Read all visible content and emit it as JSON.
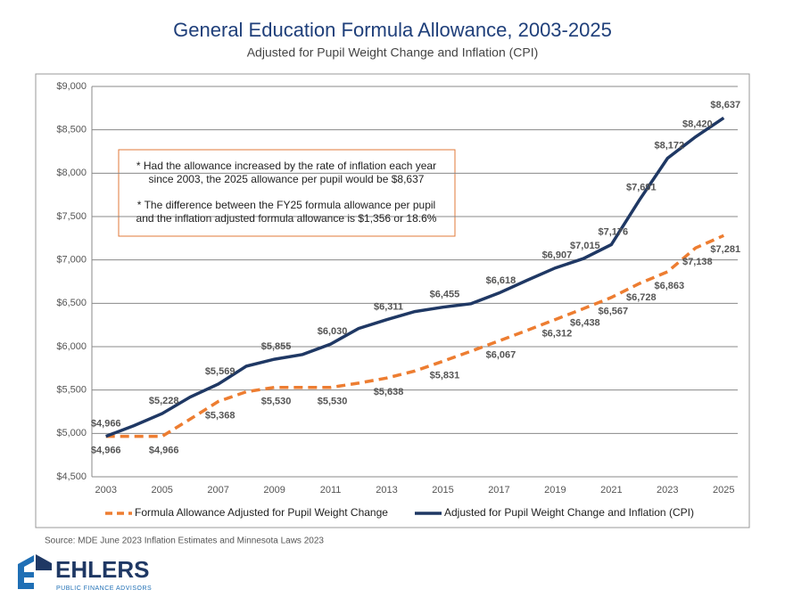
{
  "chart_data": {
    "type": "line",
    "title": "General Education Formula Allowance, 2003-2025",
    "subtitle": "Adjusted for Pupil Weight Change and Inflation (CPI)",
    "categories": [
      "2003",
      null,
      "2005",
      null,
      "2007",
      null,
      "2009",
      null,
      "2011",
      null,
      "2013",
      null,
      "2015",
      null,
      "2017",
      null,
      "2019",
      null,
      "2021",
      null,
      "2023",
      null,
      "2025"
    ],
    "series": [
      {
        "name": "Formula Allowance Adjusted for Pupil Weight Change",
        "color": "#ed7d31",
        "dash": true,
        "values": [
          4966,
          4966,
          4966,
          5165,
          5368,
          5480,
          5530,
          5530,
          5530,
          5580,
          5638,
          5720,
          5831,
          5948,
          6067,
          6188,
          6312,
          6438,
          6567,
          6728,
          6863,
          7138,
          7281
        ],
        "value_labels": [
          "$4,966",
          null,
          "$4,966",
          null,
          "$5,368",
          null,
          "$5,530",
          null,
          "$5,530",
          null,
          "$5,638",
          null,
          "$5,831",
          null,
          "$6,067",
          null,
          "$6,312",
          "$6,438",
          "$6,567",
          "$6,728",
          "$6,863",
          "$7,138",
          "$7,281"
        ]
      },
      {
        "name": "Adjusted for Pupil Weight Change and Inflation (CPI)",
        "color": "#1f3864",
        "dash": false,
        "values": [
          4966,
          5090,
          5228,
          5420,
          5569,
          5775,
          5855,
          5910,
          6030,
          6210,
          6311,
          6405,
          6455,
          6495,
          6618,
          6765,
          6907,
          7015,
          7176,
          7691,
          8172,
          8420,
          8637
        ],
        "value_labels": [
          "$4,966",
          null,
          "$5,228",
          null,
          "$5,569",
          null,
          "$5,855",
          null,
          "$6,030",
          null,
          "$6,311",
          null,
          "$6,455",
          null,
          "$6,618",
          null,
          "$6,907",
          "$7,015",
          "$7,176",
          "$7,691",
          "$8,172",
          "$8,420",
          "$8,637"
        ]
      }
    ],
    "ylim": [
      4500,
      9000
    ],
    "yticks": [
      {
        "value": 4500,
        "label": "$4,500"
      },
      {
        "value": 5000,
        "label": "$5,000"
      },
      {
        "value": 5500,
        "label": "$5,500"
      },
      {
        "value": 6000,
        "label": "$6,000"
      },
      {
        "value": 6500,
        "label": "$6,500"
      },
      {
        "value": 7000,
        "label": "$7,000"
      },
      {
        "value": 7500,
        "label": "$7,500"
      },
      {
        "value": 8000,
        "label": "$8,000"
      },
      {
        "value": 8500,
        "label": "$8,500"
      },
      {
        "value": 9000,
        "label": "$9,000"
      }
    ],
    "grid": true,
    "legend": "bottom",
    "annotations": [
      "* Had the allowance increased by the rate of inflation each year",
      "since 2003, the 2025 allowance per pupil would be $8,637",
      "* The difference between the FY25 formula allowance per pupil",
      "and the inflation adjusted formula allowance is $1,356 or 18.6%"
    ]
  },
  "source": "Source: MDE June 2023 Inflation Estimates and Minnesota Laws 2023",
  "logo": {
    "name": "EHLERS",
    "tagline": "PUBLIC FINANCE ADVISORS"
  }
}
